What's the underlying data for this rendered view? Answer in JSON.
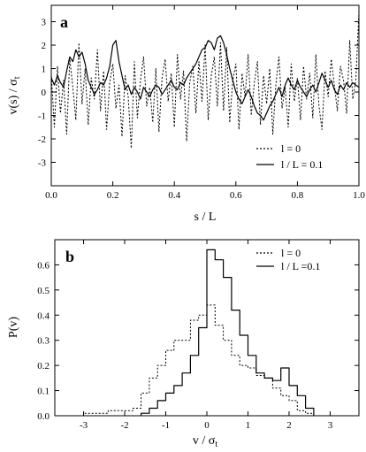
{
  "chart_data": [
    {
      "panel_label": "a",
      "type": "line",
      "xlabel": "s / L",
      "ylabel": "v(s) / σ_t",
      "ylabel_main": "v(s) / σ",
      "ylabel_sub": "t",
      "xlim": [
        0.0,
        1.0
      ],
      "ylim": [
        -4,
        3.7
      ],
      "xticks": [
        0.0,
        0.2,
        0.4,
        0.6,
        0.8,
        1.0
      ],
      "xtick_labels": [
        "0.0",
        "0.2",
        "0.4",
        "0.6",
        "0.8",
        "1.0"
      ],
      "yticks": [
        -3,
        -2,
        -1,
        0,
        1,
        2,
        3
      ],
      "ytick_labels": [
        "-3",
        "-2",
        "-1",
        "0",
        "1",
        "2",
        "3"
      ],
      "legend_position": "bottom-right",
      "series": [
        {
          "name": "l = 0",
          "style": "dotted",
          "x": [
            0.0,
            0.01,
            0.02,
            0.03,
            0.04,
            0.05,
            0.06,
            0.07,
            0.08,
            0.09,
            0.1,
            0.11,
            0.12,
            0.13,
            0.14,
            0.15,
            0.16,
            0.17,
            0.18,
            0.19,
            0.2,
            0.21,
            0.22,
            0.23,
            0.24,
            0.25,
            0.26,
            0.27,
            0.28,
            0.29,
            0.3,
            0.31,
            0.32,
            0.33,
            0.34,
            0.35,
            0.36,
            0.37,
            0.38,
            0.39,
            0.4,
            0.41,
            0.42,
            0.43,
            0.44,
            0.45,
            0.46,
            0.47,
            0.48,
            0.49,
            0.5,
            0.51,
            0.52,
            0.53,
            0.54,
            0.55,
            0.56,
            0.57,
            0.58,
            0.59,
            0.6,
            0.61,
            0.62,
            0.63,
            0.64,
            0.65,
            0.66,
            0.67,
            0.68,
            0.69,
            0.7,
            0.71,
            0.72,
            0.73,
            0.74,
            0.75,
            0.76,
            0.77,
            0.78,
            0.79,
            0.8,
            0.81,
            0.82,
            0.83,
            0.84,
            0.85,
            0.86,
            0.87,
            0.88,
            0.89,
            0.9,
            0.91,
            0.92,
            0.93,
            0.94,
            0.95,
            0.96,
            0.97,
            0.98,
            0.99,
            1.0
          ],
          "values": [
            0.8,
            -1.5,
            1.1,
            -0.9,
            0.5,
            -1.8,
            1.4,
            0.2,
            -1.2,
            2.1,
            -0.5,
            1.0,
            -1.4,
            0.6,
            -0.3,
            1.8,
            -0.8,
            0.9,
            -1.6,
            0.4,
            1.2,
            -0.7,
            0.3,
            -1.9,
            0.7,
            -0.2,
            -2.4,
            1.3,
            -1.1,
            0.5,
            1.5,
            -0.6,
            0.2,
            -1.3,
            1.0,
            -1.7,
            0.6,
            1.4,
            -0.4,
            0.8,
            -1.5,
            1.6,
            -0.3,
            0.9,
            -2.1,
            0.4,
            1.1,
            -0.9,
            1.3,
            -0.4,
            2.0,
            -1.2,
            0.7,
            1.5,
            -0.6,
            2.1,
            -0.8,
            1.9,
            -1.3,
            0.5,
            1.2,
            -1.6,
            0.8,
            -0.2,
            1.6,
            -1.0,
            0.4,
            1.3,
            -1.4,
            0.7,
            -0.5,
            1.0,
            -1.8,
            0.3,
            1.5,
            -0.7,
            0.2,
            -1.5,
            1.2,
            -0.4,
            0.6,
            -1.2,
            1.1,
            -0.3,
            0.8,
            -1.1,
            1.6,
            -0.6,
            -1.6,
            0.9,
            -0.2,
            1.4,
            0.3,
            -0.8,
            1.1,
            0.5,
            -0.9,
            2.2,
            -0.3,
            0.5,
            3.4
          ]
        },
        {
          "name": "l / L = 0.1",
          "style": "solid",
          "x": [
            0.0,
            0.01,
            0.02,
            0.03,
            0.04,
            0.05,
            0.06,
            0.07,
            0.08,
            0.09,
            0.1,
            0.11,
            0.12,
            0.13,
            0.14,
            0.15,
            0.16,
            0.17,
            0.18,
            0.19,
            0.2,
            0.21,
            0.22,
            0.23,
            0.24,
            0.25,
            0.26,
            0.27,
            0.28,
            0.29,
            0.3,
            0.31,
            0.32,
            0.33,
            0.34,
            0.35,
            0.36,
            0.37,
            0.38,
            0.39,
            0.4,
            0.41,
            0.42,
            0.43,
            0.44,
            0.45,
            0.46,
            0.47,
            0.48,
            0.49,
            0.5,
            0.51,
            0.52,
            0.53,
            0.54,
            0.55,
            0.56,
            0.57,
            0.58,
            0.59,
            0.6,
            0.61,
            0.62,
            0.63,
            0.64,
            0.65,
            0.66,
            0.67,
            0.68,
            0.69,
            0.7,
            0.71,
            0.72,
            0.73,
            0.74,
            0.75,
            0.76,
            0.77,
            0.78,
            0.79,
            0.8,
            0.81,
            0.82,
            0.83,
            0.84,
            0.85,
            0.86,
            0.87,
            0.88,
            0.89,
            0.9,
            0.91,
            0.92,
            0.93,
            0.94,
            0.95,
            0.96,
            0.97,
            0.98,
            0.99,
            1.0
          ],
          "values": [
            0.6,
            0.3,
            0.7,
            0.4,
            0.2,
            0.9,
            1.5,
            1.3,
            1.8,
            1.5,
            1.7,
            1.2,
            0.5,
            0.2,
            -0.1,
            0.1,
            0.4,
            0.3,
            0.6,
            1.1,
            2.0,
            2.2,
            1.3,
            0.7,
            0.1,
            0.3,
            -0.1,
            0.2,
            0.0,
            -0.3,
            0.2,
            0.0,
            -0.2,
            0.1,
            0.3,
            0.2,
            -0.1,
            0.1,
            0.3,
            0.5,
            0.2,
            0.1,
            0.4,
            0.3,
            0.6,
            0.8,
            1.0,
            1.2,
            1.5,
            1.8,
            1.9,
            2.2,
            2.1,
            1.8,
            2.3,
            2.4,
            2.1,
            1.6,
            1.0,
            0.5,
            0.0,
            -0.3,
            -0.5,
            -0.2,
            0.1,
            -0.2,
            -0.6,
            -0.9,
            -1.0,
            -1.2,
            -0.9,
            -0.6,
            -0.4,
            -0.1,
            0.2,
            -0.2,
            0.3,
            0.6,
            0.3,
            0.1,
            0.5,
            0.2,
            0.0,
            -0.2,
            0.1,
            0.3,
            0.0,
            0.4,
            0.8,
            0.5,
            0.2,
            0.5,
            0.1,
            -0.1,
            0.3,
            0.1,
            0.4,
            0.2,
            0.4,
            0.3,
            0.2
          ]
        }
      ]
    },
    {
      "panel_label": "b",
      "type": "step",
      "xlabel": "v / σ_t",
      "xlabel_main": "v / σ",
      "xlabel_sub": "t",
      "ylabel": "P(v)",
      "xlim": [
        -3.7,
        3.7
      ],
      "ylim": [
        0.0,
        0.7
      ],
      "xticks": [
        -3,
        -2,
        -1,
        0,
        1,
        2,
        3
      ],
      "xtick_labels": [
        "-3",
        "-2",
        "-1",
        "0",
        "1",
        "2",
        "3"
      ],
      "yticks": [
        0.0,
        0.1,
        0.2,
        0.3,
        0.4,
        0.5,
        0.6
      ],
      "ytick_labels": [
        "0.0",
        "0.1",
        "0.2",
        "0.3",
        "0.4",
        "0.5",
        "0.6"
      ],
      "legend_position": "top-right",
      "series": [
        {
          "name": "l = 0",
          "style": "dotted",
          "bin_edges": [
            -3.0,
            -2.8,
            -2.6,
            -2.4,
            -2.2,
            -2.0,
            -1.8,
            -1.6,
            -1.4,
            -1.2,
            -1.0,
            -0.8,
            -0.6,
            -0.4,
            -0.2,
            0.0,
            0.2,
            0.4,
            0.6,
            0.8,
            1.0,
            1.2,
            1.4,
            1.6,
            1.8,
            2.0,
            2.2,
            2.4,
            2.6
          ],
          "values": [
            0.01,
            0.01,
            0.01,
            0.02,
            0.02,
            0.02,
            0.03,
            0.09,
            0.15,
            0.2,
            0.26,
            0.3,
            0.3,
            0.38,
            0.4,
            0.44,
            0.36,
            0.3,
            0.24,
            0.2,
            0.19,
            0.16,
            0.15,
            0.11,
            0.08,
            0.06,
            0.02,
            0.01
          ]
        },
        {
          "name": "l / L =0.1",
          "style": "solid",
          "bin_edges": [
            -1.6,
            -1.4,
            -1.2,
            -1.0,
            -0.8,
            -0.6,
            -0.4,
            -0.2,
            0.0,
            0.2,
            0.4,
            0.6,
            0.8,
            1.0,
            1.2,
            1.4,
            1.6,
            1.8,
            2.0,
            2.2,
            2.4,
            2.6
          ],
          "values": [
            0.01,
            0.03,
            0.06,
            0.09,
            0.12,
            0.17,
            0.24,
            0.35,
            0.66,
            0.62,
            0.55,
            0.42,
            0.32,
            0.24,
            0.17,
            0.15,
            0.14,
            0.19,
            0.12,
            0.08,
            0.03
          ]
        }
      ]
    }
  ]
}
